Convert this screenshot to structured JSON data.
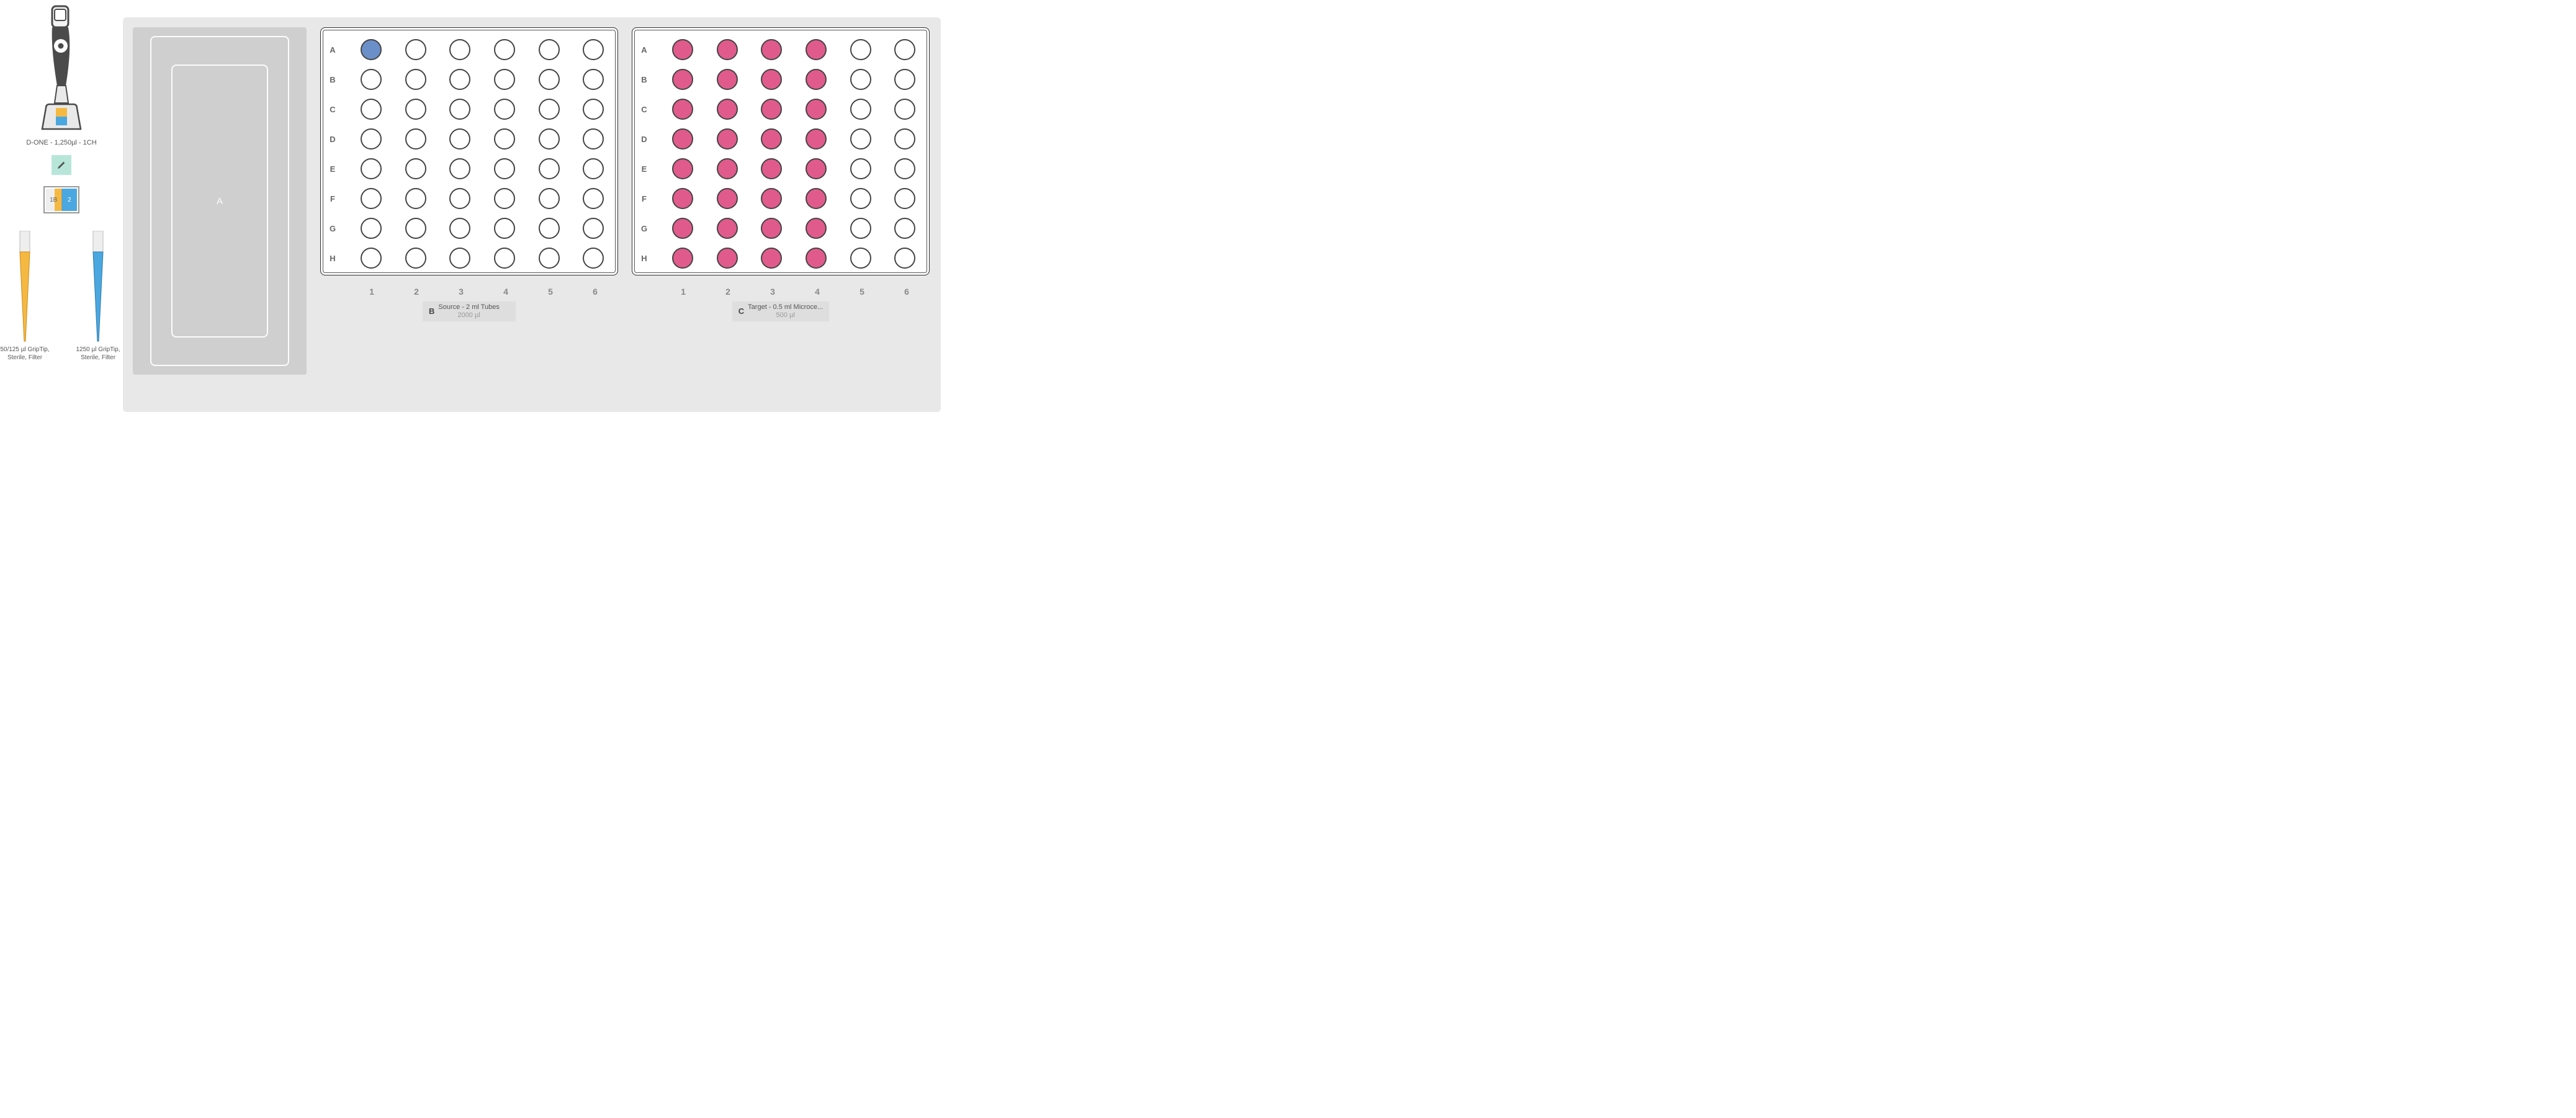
{
  "colors": {
    "background_deck": "#e8e8e8",
    "placeholder": "#cfcfcf",
    "placeholder_line": "#fcfcfc",
    "well_border": "#444444",
    "well_empty": "#ffffff",
    "well_blue": "#6b8fc9",
    "well_pink": "#e05b8b",
    "tip_orange": "#f5b942",
    "tip_blue": "#4aa7e0",
    "edit_bg": "#b7e6d9"
  },
  "pipette": {
    "label": "D-ONE - 1,250µl - 1CH"
  },
  "tip_slots": {
    "slot1": "1B",
    "slot2": "2"
  },
  "tips": [
    {
      "label": "50/125 µl GripTip, Sterile, Filter",
      "color": "#f5b942"
    },
    {
      "label": "1250 µl GripTip, Sterile, Filter",
      "color": "#4aa7e0"
    }
  ],
  "positions": {
    "A": {
      "letter": "A",
      "type": "placeholder"
    },
    "B": {
      "letter": "B",
      "title": "Source - 2 ml Tubes",
      "subtitle": "2000 µl",
      "rows": [
        "A",
        "B",
        "C",
        "D",
        "E",
        "F",
        "G",
        "H"
      ],
      "cols": [
        "1",
        "2",
        "3",
        "4",
        "5",
        "6"
      ],
      "filled": {
        "A1": "#6b8fc9"
      }
    },
    "C": {
      "letter": "C",
      "title": "Target - 0.5 ml Microce...",
      "subtitle": "500 µl",
      "rows": [
        "A",
        "B",
        "C",
        "D",
        "E",
        "F",
        "G",
        "H"
      ],
      "cols": [
        "1",
        "2",
        "3",
        "4",
        "5",
        "6"
      ],
      "filled_cols": [
        1,
        2,
        3,
        4
      ],
      "fill_color": "#e05b8b"
    }
  }
}
